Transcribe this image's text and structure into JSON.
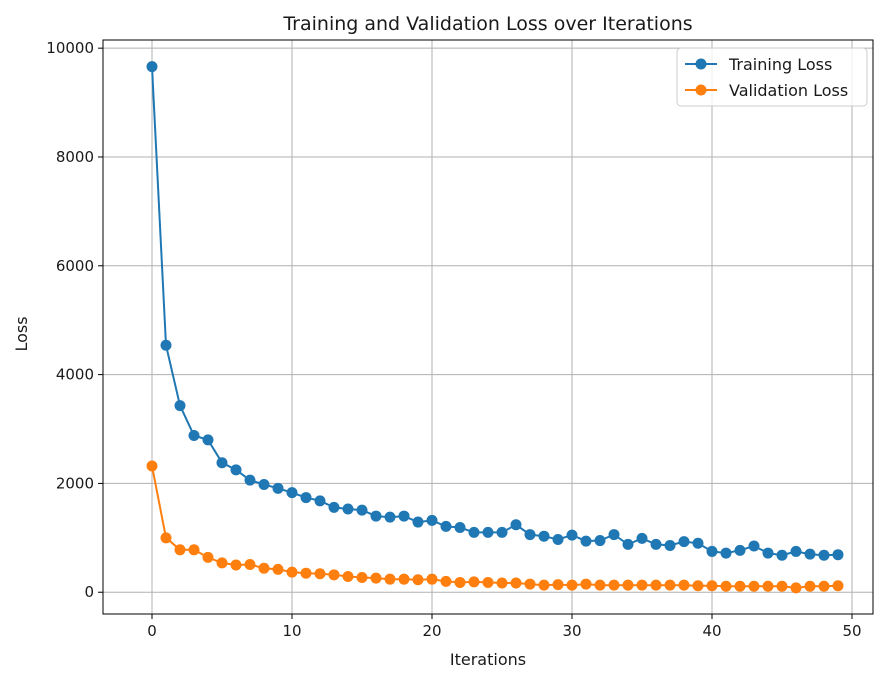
{
  "chart_data": {
    "type": "line",
    "title": "Training and Validation Loss over Iterations",
    "xlabel": "Iterations",
    "ylabel": "Loss",
    "xlim": [
      -3.5,
      51.5
    ],
    "ylim": [
      -400,
      10150
    ],
    "xticks": [
      0,
      10,
      20,
      30,
      40,
      50
    ],
    "yticks": [
      0,
      2000,
      4000,
      6000,
      8000,
      10000
    ],
    "grid": true,
    "legend_position": "top-right",
    "x": [
      0,
      1,
      2,
      3,
      4,
      5,
      6,
      7,
      8,
      9,
      10,
      11,
      12,
      13,
      14,
      15,
      16,
      17,
      18,
      19,
      20,
      21,
      22,
      23,
      24,
      25,
      26,
      27,
      28,
      29,
      30,
      31,
      32,
      33,
      34,
      35,
      36,
      37,
      38,
      39,
      40,
      41,
      42,
      43,
      44,
      45,
      46,
      47,
      48,
      49
    ],
    "series": [
      {
        "name": "Training Loss",
        "color": "#1f77b4",
        "marker": "circle",
        "values": [
          9660,
          4540,
          3430,
          2880,
          2800,
          2380,
          2250,
          2060,
          1980,
          1910,
          1830,
          1740,
          1680,
          1560,
          1530,
          1510,
          1400,
          1380,
          1400,
          1290,
          1320,
          1210,
          1190,
          1100,
          1100,
          1100,
          1240,
          1060,
          1030,
          970,
          1050,
          940,
          950,
          1060,
          880,
          990,
          880,
          860,
          930,
          900,
          750,
          720,
          770,
          850,
          720,
          680,
          750,
          700,
          680,
          690
        ]
      },
      {
        "name": "Validation Loss",
        "color": "#ff7f0e",
        "marker": "circle",
        "values": [
          2320,
          1000,
          780,
          780,
          640,
          540,
          500,
          510,
          440,
          420,
          370,
          350,
          340,
          320,
          290,
          270,
          260,
          240,
          240,
          230,
          240,
          200,
          180,
          190,
          180,
          170,
          170,
          150,
          130,
          140,
          130,
          150,
          130,
          130,
          130,
          130,
          130,
          130,
          130,
          120,
          120,
          110,
          110,
          110,
          110,
          110,
          80,
          110,
          110,
          120
        ]
      }
    ]
  }
}
